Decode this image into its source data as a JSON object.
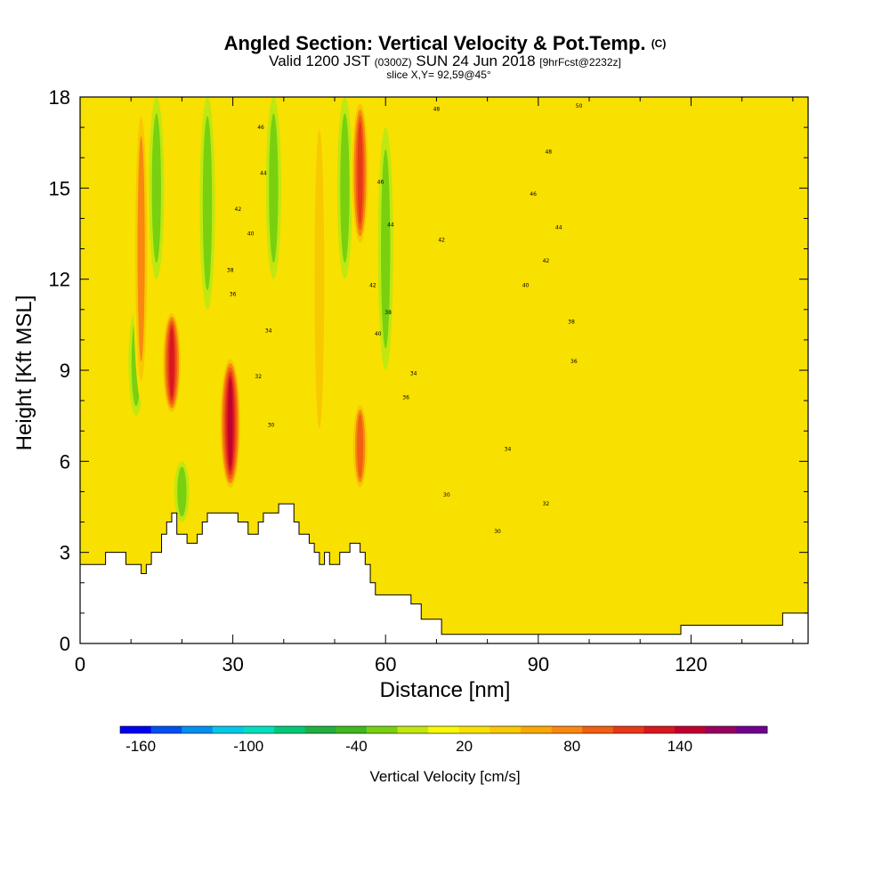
{
  "header": {
    "title": "Angled Section: Vertical Velocity & Pot.Temp.",
    "title_units": "(C)",
    "valid_prefix": "Valid 1200 JST",
    "valid_zulu": "(0300Z)",
    "valid_date": "SUN 24 Jun 2018",
    "valid_fcst": "[9hrFcst@2232z]",
    "slice": "slice X,Y= 92,59@45°"
  },
  "chart_data": {
    "type": "heatmap",
    "title": "Angled Section: Vertical Velocity & Pot.Temp.",
    "xlabel": "Distance [nm]",
    "ylabel": "Height [Kft MSL]",
    "xlim": [
      0,
      143
    ],
    "ylim": [
      0,
      18
    ],
    "x_ticks": [
      "0",
      "30",
      "60",
      "90",
      "120"
    ],
    "y_ticks": [
      "0",
      "3",
      "6",
      "9",
      "12",
      "15",
      "18"
    ],
    "colorbar": {
      "label": "Vertical Velocity [cm/s]",
      "tick_labels": [
        "-160",
        "-100",
        "-40",
        "20",
        "80",
        "140"
      ],
      "colors": [
        "#0000f0",
        "#0050f0",
        "#0090f0",
        "#00c8e8",
        "#00e0c0",
        "#00c878",
        "#20b040",
        "#40b820",
        "#78d010",
        "#c0e810",
        "#f8f800",
        "#f8e000",
        "#f8c800",
        "#f8a800",
        "#f88810",
        "#f06010",
        "#e83818",
        "#d81820",
        "#c00030",
        "#980060",
        "#700090"
      ],
      "range": [
        -180,
        180
      ]
    },
    "base_category": {
      "value": 10,
      "note": "yellow background (0 to 20 cm/s)"
    },
    "updraft_columns": [
      {
        "x": 12,
        "z_range": [
          8,
          18
        ],
        "value": 60
      },
      {
        "x": 18,
        "z_range": [
          7.5,
          11
        ],
        "value": 120
      },
      {
        "x": 29.5,
        "z_range": [
          5,
          9.5
        ],
        "value": 150
      },
      {
        "x": 47,
        "z_range": [
          6,
          18
        ],
        "value": 50
      },
      {
        "x": 55,
        "z_range": [
          13,
          18
        ],
        "value": 100
      },
      {
        "x": 55,
        "z_range": [
          5,
          8
        ],
        "value": 80
      }
    ],
    "downdraft_columns": [
      {
        "x": 15,
        "z_range": [
          12,
          18
        ],
        "value": -40
      },
      {
        "x": 20,
        "z_range": [
          4,
          6
        ],
        "value": -40
      },
      {
        "x": 25,
        "z_range": [
          11,
          18
        ],
        "value": -40
      },
      {
        "x": 38,
        "z_range": [
          12,
          18
        ],
        "value": -40
      },
      {
        "x": 52,
        "z_range": [
          12,
          18
        ],
        "value": -40
      },
      {
        "x": 60,
        "z_range": [
          9,
          17
        ],
        "value": -40
      },
      {
        "x": 11,
        "z_range": [
          7.5,
          11
        ],
        "value": -40
      }
    ],
    "terrain": {
      "x": [
        0,
        5,
        9,
        11,
        12,
        13,
        14,
        16,
        17,
        18,
        19,
        20,
        21,
        23,
        24,
        25,
        26,
        29,
        30,
        31,
        33,
        35,
        36,
        39,
        41,
        42,
        43,
        44,
        45,
        46,
        47,
        48,
        49,
        50,
        51,
        52,
        53,
        54,
        55,
        56,
        57,
        58,
        59,
        60,
        62,
        65,
        67,
        71,
        75,
        80,
        85,
        90,
        100,
        110,
        113,
        118,
        122,
        128,
        138,
        143
      ],
      "height_kft": [
        2.6,
        3,
        2.6,
        2.6,
        2.3,
        2.6,
        3,
        3.6,
        4,
        4.3,
        3.6,
        3.6,
        3.3,
        3.6,
        4,
        4.3,
        4.3,
        4.3,
        4.3,
        4,
        3.6,
        4,
        4.3,
        4.6,
        4.6,
        4,
        3.6,
        3.6,
        3.3,
        3,
        2.6,
        3,
        2.6,
        2.6,
        3,
        3,
        3.3,
        3.3,
        3,
        2.6,
        2,
        1.6,
        1.6,
        1.6,
        1.6,
        1.3,
        0.8,
        0.3,
        0.3,
        0.3,
        0.3,
        0.3,
        0.3,
        0.3,
        0.3,
        0.6,
        0.6,
        0.6,
        1,
        1.3
      ]
    },
    "isentrope_labels": [
      {
        "x": 35.5,
        "y": 17,
        "text": "46"
      },
      {
        "x": 36,
        "y": 15.5,
        "text": "44"
      },
      {
        "x": 31,
        "y": 14.3,
        "text": "42"
      },
      {
        "x": 33.5,
        "y": 13.5,
        "text": "40"
      },
      {
        "x": 29.5,
        "y": 12.3,
        "text": "38"
      },
      {
        "x": 30,
        "y": 11.5,
        "text": "36"
      },
      {
        "x": 37,
        "y": 10.3,
        "text": "34"
      },
      {
        "x": 35,
        "y": 8.8,
        "text": "32"
      },
      {
        "x": 37.5,
        "y": 7.2,
        "text": "30"
      },
      {
        "x": 59,
        "y": 15.2,
        "text": "46"
      },
      {
        "x": 61,
        "y": 13.8,
        "text": "44"
      },
      {
        "x": 57.5,
        "y": 11.8,
        "text": "42"
      },
      {
        "x": 58.5,
        "y": 10.2,
        "text": "40"
      },
      {
        "x": 60.5,
        "y": 10.9,
        "text": "38"
      },
      {
        "x": 64,
        "y": 8.1,
        "text": "36"
      },
      {
        "x": 65.5,
        "y": 8.9,
        "text": "34"
      },
      {
        "x": 70,
        "y": 17.6,
        "text": "48"
      },
      {
        "x": 71,
        "y": 13.3,
        "text": "42"
      },
      {
        "x": 72,
        "y": 4.9,
        "text": "30"
      },
      {
        "x": 98,
        "y": 17.7,
        "text": "50"
      },
      {
        "x": 92,
        "y": 16.2,
        "text": "48"
      },
      {
        "x": 89,
        "y": 14.8,
        "text": "46"
      },
      {
        "x": 94,
        "y": 13.7,
        "text": "44"
      },
      {
        "x": 91.5,
        "y": 12.6,
        "text": "42"
      },
      {
        "x": 87.5,
        "y": 11.8,
        "text": "40"
      },
      {
        "x": 96.5,
        "y": 10.6,
        "text": "38"
      },
      {
        "x": 97,
        "y": 9.3,
        "text": "36"
      },
      {
        "x": 84,
        "y": 6.4,
        "text": "34"
      },
      {
        "x": 91.5,
        "y": 4.6,
        "text": "32"
      },
      {
        "x": 82,
        "y": 3.7,
        "text": "30"
      }
    ]
  }
}
